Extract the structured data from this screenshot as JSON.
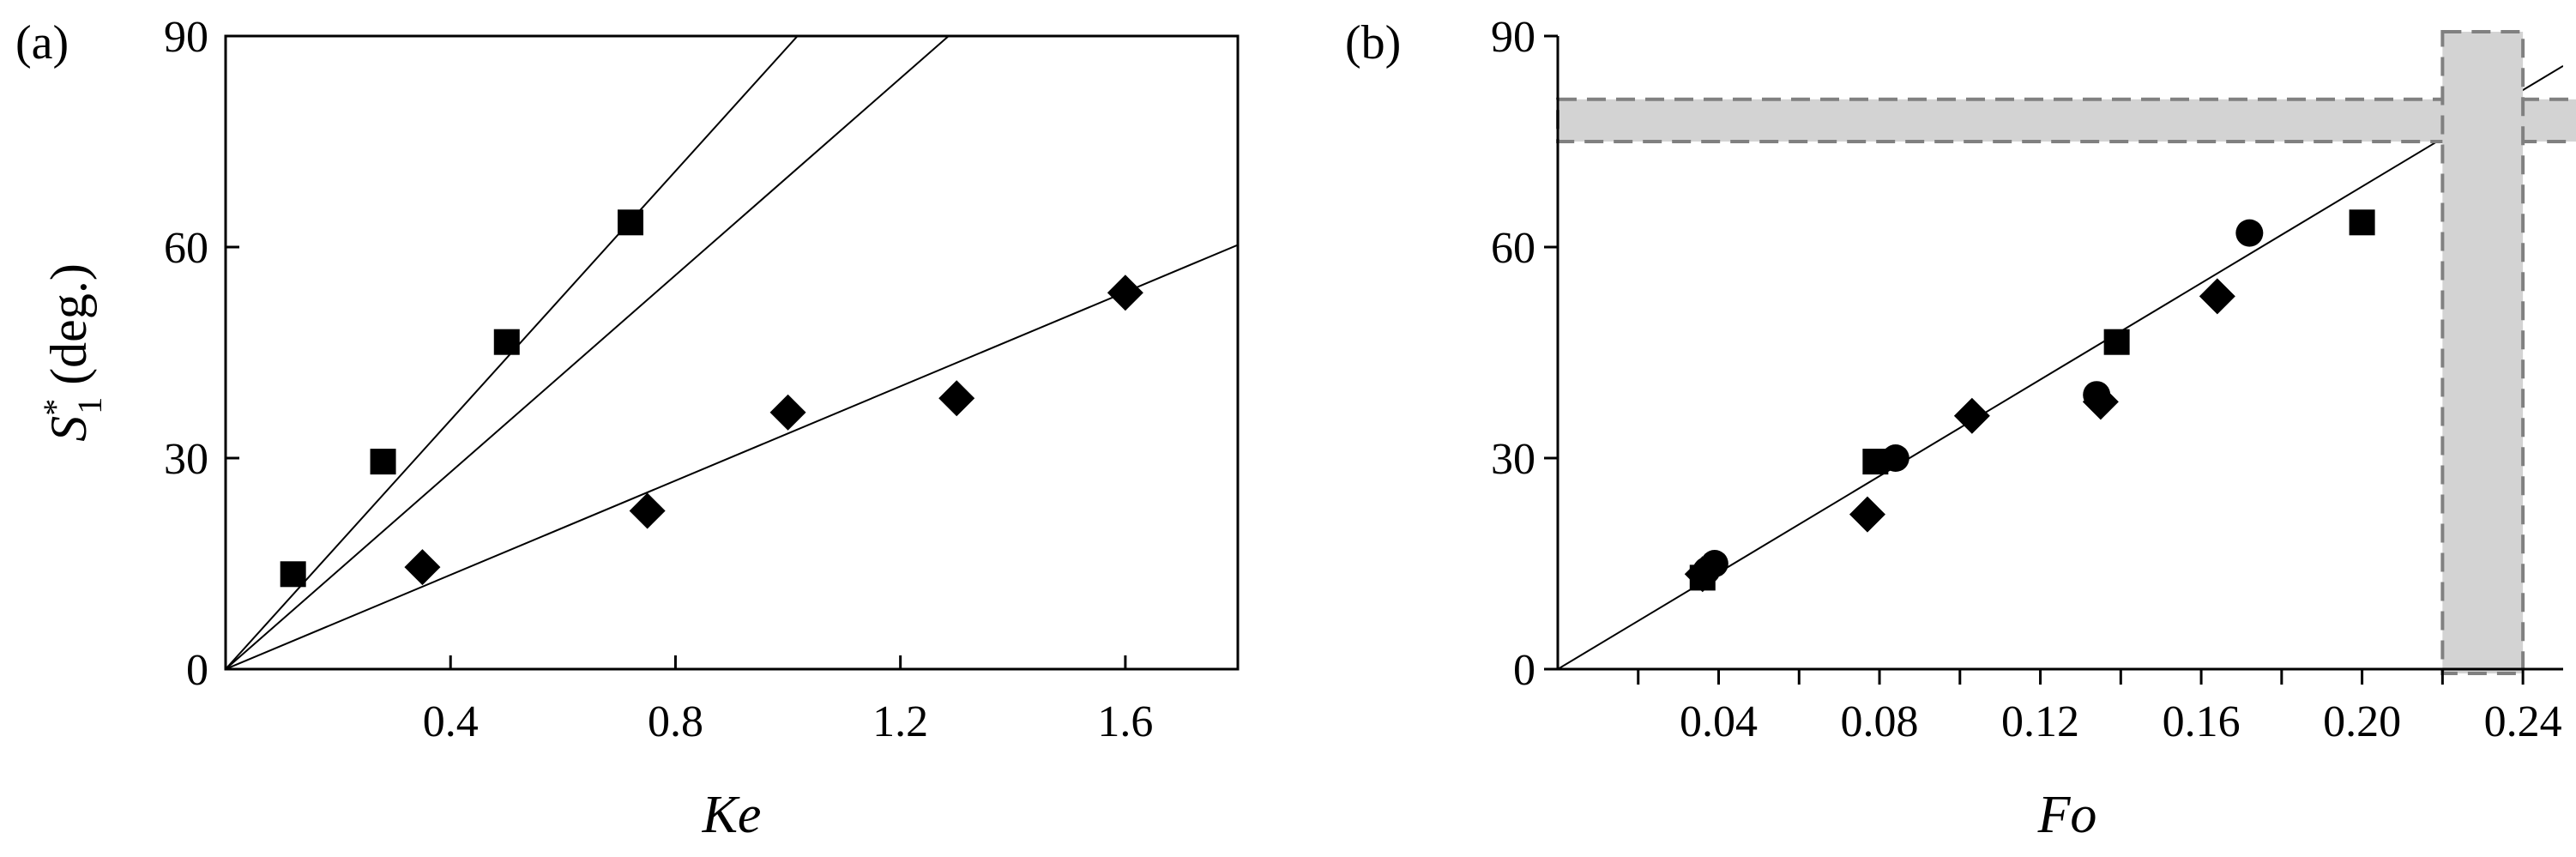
{
  "chart_data": [
    {
      "type": "scatter",
      "panel_label": "(a)",
      "xlabel": "Ke",
      "ylabel": "S₁* (deg.)",
      "ylabel_parts": {
        "symbol": "S",
        "superscript": "*",
        "subscript": "1",
        "unit": "(deg.)"
      },
      "xlim": [
        0,
        1.8
      ],
      "ylim": [
        0,
        90
      ],
      "xticks": [
        0.4,
        0.8,
        1.2,
        1.6
      ],
      "xtick_labels": [
        "0.4",
        "0.8",
        "1.2",
        "1.6"
      ],
      "yticks": [
        0,
        30,
        60,
        90
      ],
      "ytick_labels": [
        "0",
        "30",
        "60",
        "90"
      ],
      "grid": false,
      "series": [
        {
          "marker": "square",
          "x": [
            0.12,
            0.28,
            0.5,
            0.72
          ],
          "y": [
            13.5,
            29.5,
            46.5,
            63.5
          ]
        },
        {
          "marker": "diamond",
          "x": [
            0.35,
            0.75,
            1.0,
            1.3,
            1.6
          ],
          "y": [
            14.5,
            22.5,
            36.5,
            38.5,
            53.5
          ]
        }
      ],
      "lines": [
        {
          "from": [
            0,
            0
          ],
          "to": [
            1.017,
            90
          ],
          "slope": 88.5
        },
        {
          "from": [
            0,
            0
          ],
          "to": [
            1.285,
            90
          ],
          "slope": 70.0
        },
        {
          "from": [
            0,
            0
          ],
          "to": [
            1.8,
            60.3
          ],
          "slope": 33.5
        }
      ]
    },
    {
      "type": "scatter",
      "panel_label": "(b)",
      "xlabel": "Fo",
      "ylabel": "",
      "xlim": [
        0,
        0.25
      ],
      "ylim": [
        0,
        90
      ],
      "xticks": [
        0.04,
        0.08,
        0.12,
        0.16,
        0.2,
        0.24
      ],
      "xtick_labels": [
        "0.04",
        "0.08",
        "0.12",
        "0.16",
        "0.20",
        "0.24"
      ],
      "xminor_ticks": [
        0.02,
        0.06,
        0.1,
        0.14,
        0.18,
        0.22
      ],
      "yticks": [
        0,
        30,
        60,
        90
      ],
      "ytick_labels": [
        "0",
        "30",
        "60",
        "90"
      ],
      "grid": false,
      "bands": [
        {
          "orientation": "horizontal",
          "y_from": 75,
          "y_to": 81,
          "fill": "#d3d3d3",
          "border": "#808080",
          "border_style": "dashed"
        },
        {
          "orientation": "vertical",
          "x_from": 0.22,
          "x_to": 0.24,
          "fill": "#d3d3d3",
          "border": "#808080",
          "border_style": "dashed"
        }
      ],
      "series": [
        {
          "marker": "square",
          "x": [
            0.036,
            0.079,
            0.139,
            0.2
          ],
          "y": [
            13,
            29.5,
            46.5,
            63.5
          ]
        },
        {
          "marker": "diamond",
          "x": [
            0.036,
            0.077,
            0.103,
            0.135,
            0.164
          ],
          "y": [
            13.5,
            22,
            36,
            38,
            53
          ]
        },
        {
          "marker": "circle",
          "x": [
            0.037,
            0.039,
            0.084,
            0.134,
            0.172
          ],
          "y": [
            14,
            15,
            30,
            39,
            62
          ]
        }
      ],
      "lines": [
        {
          "from": [
            0,
            0
          ],
          "to": [
            0.25,
            85.8
          ],
          "slope": 343
        }
      ]
    }
  ]
}
